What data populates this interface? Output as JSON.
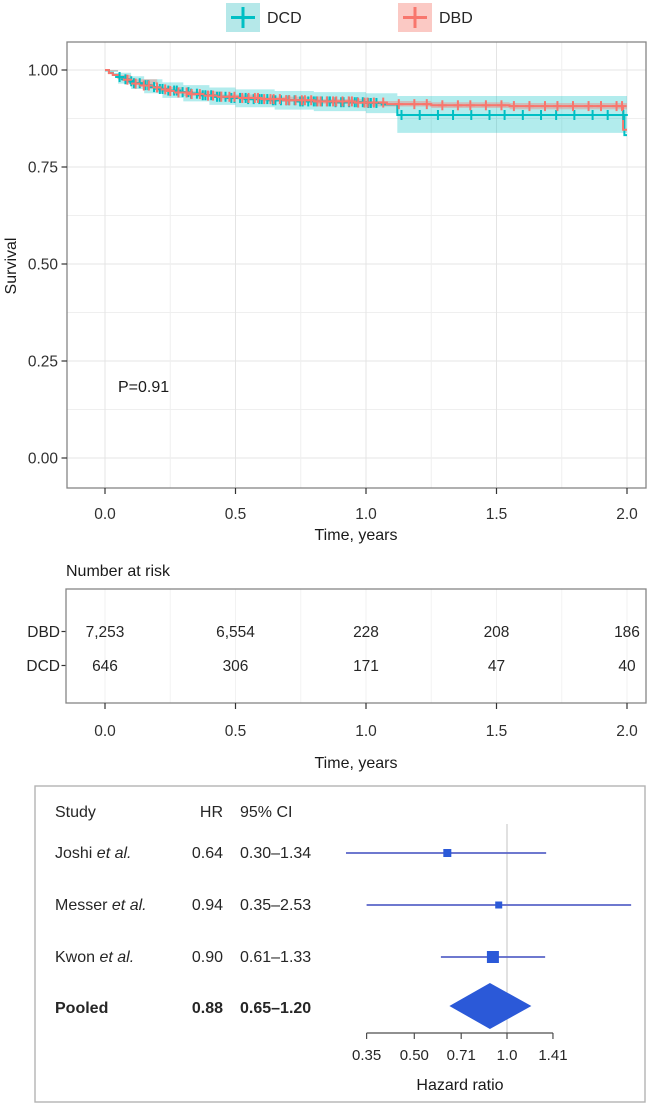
{
  "colors": {
    "dcd": "#00BFC4",
    "dbd": "#F8766D",
    "grid_minor": "#efefef",
    "grid_major": "#e4e4e4",
    "panel_border": "#858585",
    "axis_text": "#303030",
    "forest_border": "#b3b3b3",
    "forest_line": "#5a64c8",
    "forest_marker": "#2b59d8",
    "reference_line": "#d4d4d4"
  },
  "legend": {
    "items": [
      {
        "label": "DCD",
        "color": "#00BFC4",
        "fill": "#b5e8e9"
      },
      {
        "label": "DBD",
        "color": "#F8766D",
        "fill": "#fbc9c4"
      }
    ]
  },
  "chart_data": [
    {
      "type": "line",
      "subtype": "kaplan-meier",
      "title": "",
      "xlabel": "Time, years",
      "ylabel": "Survival",
      "xlim": [
        0,
        2.0
      ],
      "ylim": [
        0,
        1.0
      ],
      "xmax": 2.0,
      "xticks": [
        0,
        0.5,
        1.0,
        1.5,
        2.0
      ],
      "xtick_labels": [
        "0.0",
        "0.5",
        "1.0",
        "1.5",
        "2.0"
      ],
      "yticks": [
        0,
        0.25,
        0.5,
        0.75,
        1.0
      ],
      "ytick_labels": [
        "0.00",
        "0.25",
        "0.50",
        "0.75",
        "1.00"
      ],
      "grid": true,
      "legend_position": "top",
      "annotation": {
        "text": "P=0.91",
        "x": 0.05,
        "y": 0.17
      },
      "series": [
        {
          "name": "DCD",
          "color": "#00BFC4",
          "band_opacity": 0.3,
          "steps": [
            [
              0,
              1.0
            ],
            [
              0.015,
              0.993
            ],
            [
              0.03,
              0.988
            ],
            [
              0.05,
              0.982
            ],
            [
              0.07,
              0.976
            ],
            [
              0.09,
              0.971
            ],
            [
              0.11,
              0.966
            ],
            [
              0.14,
              0.961
            ],
            [
              0.17,
              0.956
            ],
            [
              0.2,
              0.951
            ],
            [
              0.24,
              0.947
            ],
            [
              0.28,
              0.943
            ],
            [
              0.32,
              0.939
            ],
            [
              0.36,
              0.935
            ],
            [
              0.41,
              0.931
            ],
            [
              0.47,
              0.928
            ],
            [
              0.54,
              0.925
            ],
            [
              0.63,
              0.922
            ],
            [
              0.74,
              0.919
            ],
            [
              0.88,
              0.917
            ],
            [
              1.0,
              0.915
            ],
            [
              1.06,
              0.911
            ],
            [
              1.12,
              0.884
            ],
            [
              1.99,
              0.832
            ]
          ],
          "ci": [
            [
              0,
              0.995,
              1.0
            ],
            [
              0.05,
              0.965,
              0.993
            ],
            [
              0.1,
              0.951,
              0.984
            ],
            [
              0.15,
              0.94,
              0.976
            ],
            [
              0.22,
              0.928,
              0.968
            ],
            [
              0.3,
              0.919,
              0.961
            ],
            [
              0.4,
              0.91,
              0.955
            ],
            [
              0.5,
              0.904,
              0.95
            ],
            [
              0.65,
              0.898,
              0.946
            ],
            [
              0.8,
              0.894,
              0.943
            ],
            [
              1.0,
              0.889,
              0.94
            ],
            [
              1.12,
              0.838,
              0.933
            ],
            [
              1.99,
              0.838,
              0.933
            ]
          ],
          "censor_runs": [
            {
              "from": 0.06,
              "to": 0.48,
              "count": 24
            },
            {
              "from": 0.5,
              "to": 1.04,
              "count": 32
            },
            {
              "from": 1.14,
              "to": 1.93,
              "count": 13
            },
            {
              "from": 1.99,
              "to": 1.99,
              "count": 1
            }
          ]
        },
        {
          "name": "DBD",
          "color": "#F8766D",
          "band_opacity": 0.38,
          "steps": [
            [
              0,
              1.0
            ],
            [
              0.015,
              0.992
            ],
            [
              0.03,
              0.987
            ],
            [
              0.05,
              0.981
            ],
            [
              0.07,
              0.975
            ],
            [
              0.09,
              0.97
            ],
            [
              0.11,
              0.965
            ],
            [
              0.14,
              0.96
            ],
            [
              0.17,
              0.955
            ],
            [
              0.2,
              0.95
            ],
            [
              0.24,
              0.946
            ],
            [
              0.28,
              0.942
            ],
            [
              0.33,
              0.938
            ],
            [
              0.38,
              0.934
            ],
            [
              0.44,
              0.931
            ],
            [
              0.51,
              0.928
            ],
            [
              0.59,
              0.925
            ],
            [
              0.69,
              0.922
            ],
            [
              0.81,
              0.919
            ],
            [
              0.95,
              0.916
            ],
            [
              1.08,
              0.912
            ],
            [
              1.25,
              0.909
            ],
            [
              1.55,
              0.907
            ],
            [
              1.985,
              0.846
            ]
          ],
          "ci": [
            [
              0,
              0.997,
              1.0
            ],
            [
              0.05,
              0.975,
              0.987
            ],
            [
              0.1,
              0.964,
              0.976
            ],
            [
              0.2,
              0.944,
              0.956
            ],
            [
              0.3,
              0.933,
              0.945
            ],
            [
              0.45,
              0.924,
              0.937
            ],
            [
              0.6,
              0.919,
              0.931
            ],
            [
              0.8,
              0.913,
              0.925
            ],
            [
              1.0,
              0.906,
              0.92
            ],
            [
              1.25,
              0.902,
              0.917
            ],
            [
              1.55,
              0.899,
              0.915
            ],
            [
              1.985,
              0.899,
              0.915
            ]
          ],
          "censor_runs": [
            {
              "from": 0.09,
              "to": 0.5,
              "count": 16
            },
            {
              "from": 0.53,
              "to": 1.03,
              "count": 26
            },
            {
              "from": 1.07,
              "to": 1.96,
              "count": 17
            },
            {
              "from": 1.985,
              "to": 1.985,
              "count": 1
            }
          ]
        }
      ]
    },
    {
      "type": "table",
      "title": "Number at risk",
      "xlabel": "Time, years",
      "x": [
        0,
        0.5,
        1.0,
        1.5,
        2.0
      ],
      "xtick_labels": [
        "0.0",
        "0.5",
        "1.0",
        "1.5",
        "2.0"
      ],
      "rows": [
        {
          "name": "DBD",
          "color": "#F8766D",
          "values": [
            "7,253",
            "6,554",
            "228",
            "208",
            "186"
          ]
        },
        {
          "name": "DCD",
          "color": "#00BFC4",
          "values": [
            "646",
            "306",
            "171",
            "47",
            "40"
          ]
        }
      ]
    },
    {
      "type": "forest",
      "columns": [
        "Study",
        "HR",
        "95% CI"
      ],
      "xlabel": "Hazard ratio",
      "scale": "log2",
      "reference_line": 1.0,
      "xticks": [
        0.35,
        0.5,
        0.71,
        1.0,
        1.41
      ],
      "xtick_labels": [
        "0.35",
        "0.50",
        "0.71",
        "1.0",
        "1.41"
      ],
      "studies": [
        {
          "label_plain": "Joshi",
          "label_italic": "et al.",
          "hr_text": "0.64",
          "ci_text": "0.30–1.34",
          "hr": 0.64,
          "lo": 0.3,
          "hi": 1.34,
          "marker_size": 8
        },
        {
          "label_plain": "Messer",
          "label_italic": "et al.",
          "hr_text": "0.94",
          "ci_text": "0.35–2.53",
          "hr": 0.94,
          "lo": 0.35,
          "hi": 2.53,
          "marker_size": 7
        },
        {
          "label_plain": "Kwon",
          "label_italic": "et al.",
          "hr_text": "0.90",
          "ci_text": "0.61–1.33",
          "hr": 0.9,
          "lo": 0.61,
          "hi": 1.33,
          "marker_size": 12
        }
      ],
      "pooled": {
        "label": "Pooled",
        "hr_text": "0.88",
        "ci_text": "0.65–1.20",
        "hr": 0.88,
        "lo": 0.65,
        "hi": 1.2
      }
    }
  ]
}
